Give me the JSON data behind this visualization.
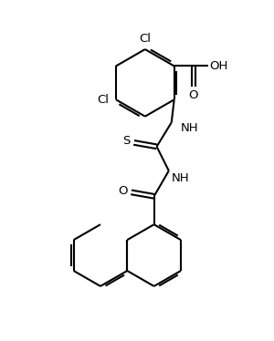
{
  "bg_color": "#ffffff",
  "line_color": "#000000",
  "line_width": 1.5,
  "font_size": 9.5,
  "figsize": [
    3.0,
    3.74
  ],
  "dpi": 100,
  "xlim": [
    0,
    10
  ],
  "ylim": [
    0,
    12.47
  ]
}
